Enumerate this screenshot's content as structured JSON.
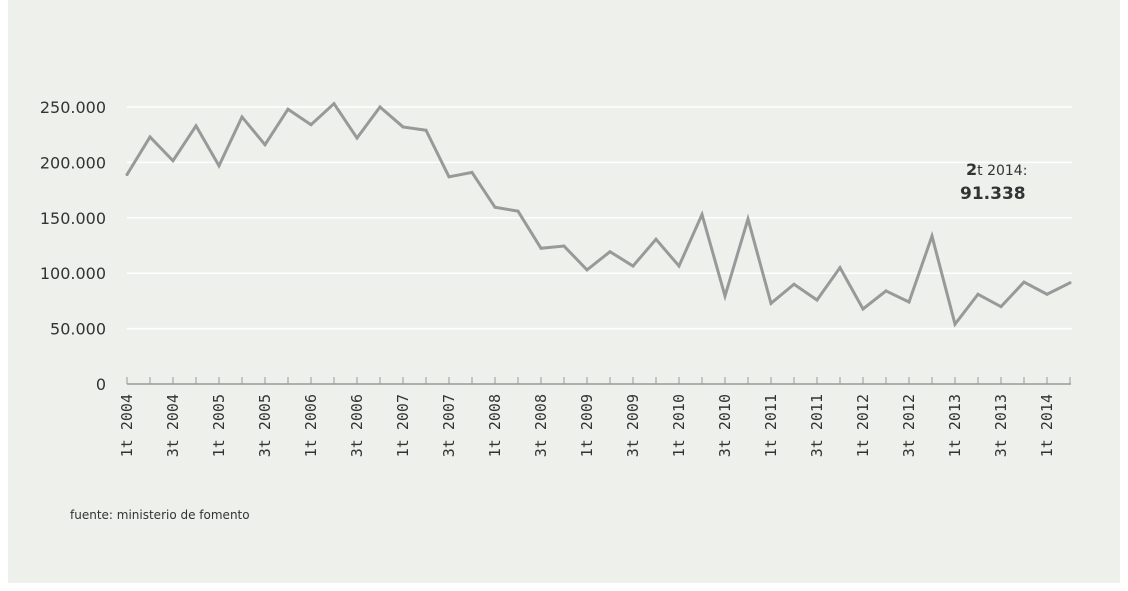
{
  "chart_data": {
    "type": "line",
    "title": "",
    "xlabel": "",
    "ylabel": "",
    "ylim": [
      0,
      250000
    ],
    "yticks": [
      0,
      50000,
      100000,
      150000,
      200000,
      250000
    ],
    "ytick_labels": [
      "0",
      "50.000",
      "100.000",
      "150.000",
      "200.000",
      "250.000"
    ],
    "grid": true,
    "x": [
      "1t 2004",
      "2t 2004",
      "3t 2004",
      "4t 2004",
      "1t 2005",
      "2t 2005",
      "3t 2005",
      "4t 2005",
      "1t 2006",
      "2t 2006",
      "3t 2006",
      "4t 2006",
      "1t 2007",
      "2t 2007",
      "3t 2007",
      "4t 2007",
      "1t 2008",
      "2t 2008",
      "3t 2008",
      "4t 2008",
      "1t 2009",
      "2t 2009",
      "3t 2009",
      "4t 2009",
      "1t 2010",
      "2t 2010",
      "3t 2010",
      "4t 2010",
      "1t 2011",
      "2t 2011",
      "3t 2011",
      "4t 2011",
      "1t 2012",
      "2t 2012",
      "3t 2012",
      "4t 2012",
      "1t 2013",
      "2t 2013",
      "3t 2013",
      "4t 2013",
      "1t 2014",
      "2t 2014"
    ],
    "xtick_labels": [
      "1t 2004",
      "3t 2004",
      "1t 2005",
      "3t 2005",
      "1t 2006",
      "3t 2006",
      "1t 2007",
      "3t 2007",
      "1t 2008",
      "3t 2008",
      "1t 2009",
      "3t 2009",
      "1t 2010",
      "3t 2010",
      "1t 2011",
      "3t 2011",
      "1t 2012",
      "3t 2012",
      "1t 2013",
      "3t 2013",
      "1t 2014"
    ],
    "series": [
      {
        "color": "#999999",
        "values": [
          189000,
          223000,
          201500,
          233000,
          197000,
          241000,
          216000,
          248000,
          234000,
          253000,
          222000,
          250000,
          232000,
          229000,
          187000,
          191000,
          159500,
          156000,
          122500,
          124500,
          103000,
          119400,
          106500,
          130600,
          106500,
          153000,
          79400,
          149000,
          72800,
          90000,
          75800,
          105000,
          67700,
          84000,
          74000,
          133500,
          54000,
          81000,
          69800,
          92000,
          81000,
          91338
        ]
      }
    ],
    "annotation": {
      "period_bold": "2",
      "period_rest": "t 2014:",
      "value": "91.338"
    },
    "source": "fuente: ministerio de fomento"
  },
  "colors": {
    "background": "#eef0ec",
    "grid": "#ffffff",
    "line": "#999999",
    "axis": "#999999"
  }
}
